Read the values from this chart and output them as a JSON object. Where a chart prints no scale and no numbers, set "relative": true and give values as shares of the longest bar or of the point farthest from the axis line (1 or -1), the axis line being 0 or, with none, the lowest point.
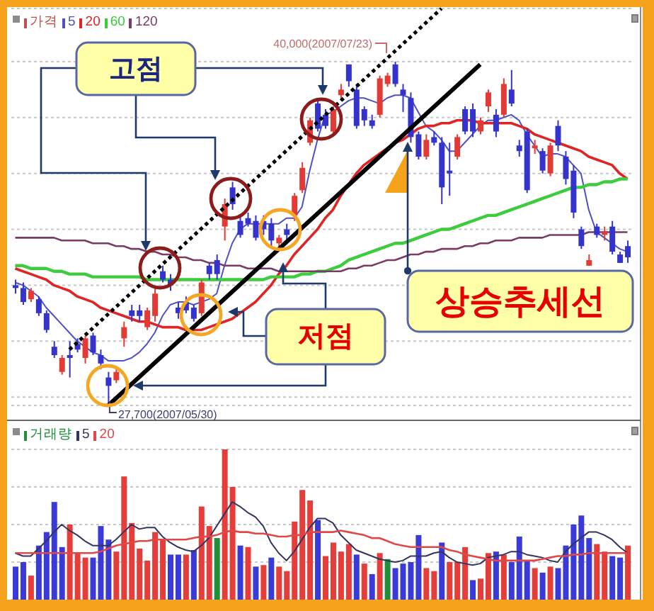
{
  "chart_data": [
    {
      "type": "candlestick",
      "tick_labels": false,
      "grid": "y",
      "legend": "top left",
      "categories": [
        null,
        null,
        null,
        null,
        null,
        null,
        null,
        null,
        null,
        null,
        null,
        null,
        null,
        null,
        null,
        null,
        null,
        null,
        null,
        null,
        null,
        null,
        null,
        null,
        null,
        null,
        null,
        null,
        null,
        null,
        null,
        null,
        null,
        null,
        null,
        null,
        null,
        null,
        null,
        null,
        null,
        null,
        null,
        null,
        null,
        null,
        null,
        null,
        null,
        null,
        null,
        null,
        null,
        null,
        null,
        null,
        null,
        null,
        null,
        null,
        null,
        null,
        null,
        null,
        null,
        null,
        null,
        null,
        null,
        null,
        null,
        null,
        null,
        null,
        null,
        null,
        null,
        null,
        null,
        null
      ],
      "yticks": [
        {
          "value": 28000,
          "label": null
        },
        {
          "value": 30000,
          "label": null
        },
        {
          "value": 32000,
          "label": null
        },
        {
          "value": 34000,
          "label": null
        },
        {
          "value": 36000,
          "label": null
        },
        {
          "value": 38000,
          "label": null
        },
        {
          "value": 40000,
          "label": null
        }
      ],
      "series": [
        {
          "name": "가격",
          "color": "#c0504d",
          "colors": [
            "#3434cc",
            "#3434cc",
            "#e23b36",
            "#3434cc",
            "#3434cc",
            "#3434cc",
            "#e23b36",
            "#3434cc",
            "#3434cc",
            "#e23b36",
            "#3434cc",
            "#3434cc",
            "#3434cc",
            "#e23b36",
            "#e23b36",
            "#3434cc",
            "#3434cc",
            "#e23b36",
            "#e23b36",
            "#3434cc",
            "#3434cc",
            "#3434cc",
            "#3434cc",
            "#3434cc",
            "#e23b36",
            "#3434cc",
            "#3434cc",
            "#e23b36",
            "#3434cc",
            "#3434cc",
            "#3434cc",
            "#3434cc",
            "#3434cc",
            "#3434cc",
            "#e23b36",
            "#3434cc",
            "#e23b36",
            "#e23b36",
            "#e23b36",
            "#3434cc",
            "#3434cc",
            "#e23b36",
            "#e23b36",
            "#3434cc",
            "#3434cc",
            "#3434cc",
            "#3434cc",
            "#e23b36",
            "#e23b36",
            "#3434cc",
            "#3434cc",
            "#3434cc",
            "#3434cc",
            "#e23b36",
            "#3434cc",
            "#3434cc",
            "#3434cc",
            "#e23b36",
            "#3434cc",
            "#3434cc",
            "#e23b36",
            "#e23b36",
            "#3434cc",
            "#e23b36",
            "#3434cc",
            "#3434cc",
            "#3434cc",
            "#e23b36",
            "#3434cc",
            "#e23b36",
            "#3434cc",
            "#3434cc",
            "#3434cc",
            "#3434cc",
            "#e23b36",
            "#3434cc",
            "#e23b36",
            "#3434cc",
            "#3434cc",
            "#3434cc"
          ],
          "ohlc": [
            [
              32000,
              32200,
              31700,
              31900
            ],
            [
              31900,
              32100,
              31300,
              31400
            ],
            [
              31500,
              31900,
              31400,
              31800
            ],
            [
              31500,
              31600,
              30900,
              31000
            ],
            [
              31000,
              31100,
              30300,
              30400
            ],
            [
              29800,
              30000,
              29400,
              29500
            ],
            [
              28900,
              29500,
              28800,
              29400
            ],
            [
              29500,
              30000,
              28700,
              29400
            ],
            [
              29900,
              30100,
              29600,
              29700
            ],
            [
              29400,
              30200,
              29200,
              30100
            ],
            [
              30200,
              30300,
              29500,
              29600
            ],
            [
              29500,
              29700,
              29000,
              29200
            ],
            [
              28700,
              28900,
              27700,
              28400
            ],
            [
              28600,
              29100,
              28500,
              28900
            ],
            [
              30100,
              30700,
              29800,
              30500
            ],
            [
              31100,
              31300,
              30700,
              30900
            ],
            [
              31100,
              31300,
              30700,
              30900
            ],
            [
              30500,
              31200,
              30400,
              31100
            ],
            [
              30900,
              31900,
              30700,
              31700
            ],
            [
              32500,
              32700,
              32100,
              32200
            ],
            [
              32200,
              32400,
              31800,
              32000
            ],
            [
              31200,
              31400,
              30800,
              31000
            ],
            [
              31400,
              31600,
              31000,
              31100
            ],
            [
              31200,
              31300,
              30700,
              30800
            ],
            [
              31000,
              32200,
              30900,
              32100
            ],
            [
              32700,
              32800,
              32200,
              32400
            ],
            [
              32900,
              33100,
              32200,
              32400
            ],
            [
              34100,
              35100,
              33600,
              34900
            ],
            [
              35500,
              35700,
              34700,
              34900
            ],
            [
              34300,
              34500,
              33700,
              33800
            ],
            [
              34400,
              34600,
              34100,
              34200
            ],
            [
              34300,
              34500,
              33600,
              33700
            ],
            [
              34300,
              34500,
              33800,
              34000
            ],
            [
              34200,
              34400,
              33400,
              33600
            ],
            [
              33500,
              33800,
              33300,
              33700
            ],
            [
              34000,
              34200,
              33600,
              33800
            ],
            [
              34500,
              35300,
              34300,
              35200
            ],
            [
              35400,
              36400,
              35300,
              36200
            ],
            [
              37100,
              38000,
              37000,
              37900
            ],
            [
              38500,
              38600,
              37500,
              37600
            ],
            [
              38100,
              38300,
              37600,
              37700
            ],
            [
              37500,
              38400,
              37400,
              38300
            ],
            [
              38800,
              39200,
              38600,
              39000
            ],
            [
              39900,
              39900,
              39100,
              39300
            ],
            [
              39000,
              39200,
              37600,
              37700
            ],
            [
              38300,
              38400,
              37700,
              37900
            ],
            [
              37900,
              38100,
              37600,
              37700
            ],
            [
              38100,
              39500,
              38000,
              39400
            ],
            [
              39200,
              39600,
              39100,
              39500
            ],
            [
              39900,
              40000,
              39100,
              39200
            ],
            [
              39000,
              39200,
              38200,
              38800
            ],
            [
              38700,
              38900,
              37100,
              37300
            ],
            [
              37400,
              37500,
              36500,
              36600
            ],
            [
              36600,
              37400,
              36500,
              37200
            ],
            [
              37300,
              37500,
              37000,
              37100
            ],
            [
              37100,
              37300,
              34900,
              35500
            ],
            [
              36100,
              37100,
              35200,
              36000
            ],
            [
              36600,
              37400,
              36500,
              37300
            ],
            [
              38300,
              38400,
              37400,
              37500
            ],
            [
              38300,
              38500,
              37300,
              37500
            ],
            [
              37500,
              38000,
              37400,
              37900
            ],
            [
              38400,
              39000,
              38200,
              38900
            ],
            [
              38100,
              38300,
              37300,
              37500
            ],
            [
              38100,
              39400,
              38000,
              39200
            ],
            [
              39000,
              39700,
              38400,
              38500
            ],
            [
              37000,
              37200,
              36600,
              36800
            ],
            [
              37500,
              37600,
              35300,
              35400
            ],
            [
              36900,
              37200,
              36700,
              37000
            ],
            [
              36800,
              36900,
              36000,
              36100
            ],
            [
              36000,
              37100,
              35900,
              37000
            ],
            [
              37700,
              37900,
              36800,
              37000
            ],
            [
              36600,
              36800,
              35600,
              35800
            ],
            [
              36100,
              36300,
              34400,
              34600
            ],
            [
              34000,
              34100,
              33300,
              33400
            ],
            [
              32700,
              33100,
              32700,
              32900
            ],
            [
              34100,
              34200,
              33700,
              33800
            ],
            [
              33800,
              34100,
              33600,
              33900
            ],
            [
              34100,
              34300,
              33100,
              33200
            ],
            [
              33100,
              33200,
              32800,
              32800
            ],
            [
              33400,
              33600,
              32800,
              33000
            ]
          ]
        },
        {
          "name": "5",
          "type": "line",
          "color": "#5050c8",
          "values": [
            32100,
            32000,
            31800,
            31600,
            31200,
            30900,
            30600,
            30300,
            30000,
            29800,
            29600,
            29500,
            29300,
            29300,
            29300,
            29400,
            29600,
            29900,
            30300,
            30900,
            31300,
            31400,
            31400,
            31300,
            31400,
            31500,
            31700,
            32700,
            33500,
            34000,
            34200,
            34200,
            34200,
            34200,
            34200,
            34400,
            34400,
            34800,
            36100,
            37200,
            38100,
            38200,
            38400,
            38600,
            38700,
            38700,
            38600,
            38500,
            38700,
            38800,
            38800,
            38700,
            38200,
            37700,
            37500,
            37200,
            36800,
            36800,
            37100,
            37400,
            37700,
            37900,
            37900,
            38000,
            38100,
            37900,
            37400,
            37000,
            36600,
            36700,
            36700,
            36600,
            36300,
            36000,
            34700,
            33900,
            33700,
            33500,
            33300,
            33200
          ]
        },
        {
          "name": "20",
          "type": "line",
          "color": "#e02424",
          "values": [
            32600,
            32500,
            32400,
            32300,
            32200,
            32000,
            31900,
            31800,
            31600,
            31500,
            31400,
            31200,
            31100,
            31000,
            30900,
            30800,
            30700,
            30700,
            30600,
            30500,
            30500,
            30500,
            30400,
            30400,
            30400,
            30500,
            30600,
            30700,
            30800,
            31000,
            31200,
            31400,
            31700,
            32000,
            32400,
            32700,
            33100,
            33400,
            33700,
            34000,
            34400,
            34700,
            35200,
            35600,
            36000,
            36300,
            36500,
            36700,
            36900,
            37100,
            37200,
            37400,
            37600,
            37700,
            37700,
            37800,
            37800,
            37900,
            37900,
            37900,
            37800,
            37800,
            37800,
            37800,
            37800,
            37700,
            37600,
            37400,
            37300,
            37200,
            37100,
            37000,
            36900,
            36800,
            36600,
            36500,
            36400,
            36300,
            36000,
            35800
          ]
        },
        {
          "name": "60",
          "type": "line",
          "color": "#3ccc3c",
          "values": [
            32700,
            32700,
            32600,
            32600,
            32600,
            32500,
            32500,
            32400,
            32400,
            32400,
            32300,
            32300,
            32300,
            32300,
            32300,
            32300,
            32300,
            32200,
            32200,
            32200,
            32200,
            32200,
            32200,
            32200,
            32200,
            32200,
            32200,
            32200,
            32200,
            32200,
            32200,
            32200,
            32200,
            32300,
            32300,
            32300,
            32300,
            32400,
            32400,
            32500,
            32500,
            32600,
            32700,
            32900,
            33000,
            33100,
            33200,
            33300,
            33400,
            33500,
            33500,
            33600,
            33700,
            33800,
            33900,
            34000,
            34000,
            34100,
            34200,
            34300,
            34400,
            34500,
            34500,
            34600,
            34700,
            34800,
            34900,
            35000,
            35100,
            35200,
            35300,
            35400,
            35500,
            35500,
            35600,
            35600,
            35700,
            35700,
            35800,
            35800
          ]
        },
        {
          "name": "120",
          "type": "line",
          "color": "#7a3c66",
          "values": [
            33700,
            33700,
            33700,
            33700,
            33700,
            33700,
            33600,
            33600,
            33600,
            33600,
            33500,
            33500,
            33500,
            33400,
            33400,
            33300,
            33300,
            33200,
            33200,
            33100,
            33100,
            33000,
            33000,
            32900,
            32900,
            32800,
            32800,
            32700,
            32700,
            32700,
            32600,
            32600,
            32600,
            32600,
            32500,
            32500,
            32500,
            32500,
            32500,
            32500,
            32500,
            32500,
            32500,
            32600,
            32600,
            32700,
            32700,
            32800,
            32900,
            32900,
            33000,
            33100,
            33100,
            33200,
            33200,
            33300,
            33300,
            33300,
            33400,
            33400,
            33500,
            33500,
            33600,
            33600,
            33600,
            33700,
            33700,
            33700,
            33700,
            33800,
            33800,
            33800,
            33800,
            33800,
            33900,
            33900,
            33900,
            33900,
            33900,
            33900
          ]
        },
        {
          "type": "line",
          "color": "#000000",
          "line_style": "dotted",
          "values": [
            null,
            null,
            null,
            null,
            null,
            null,
            null,
            29700,
            null,
            null,
            null,
            null,
            null,
            null,
            null,
            null,
            null,
            null,
            null,
            null,
            null,
            null,
            null,
            null,
            null,
            null,
            null,
            null,
            null,
            null,
            null,
            null,
            null,
            null,
            null,
            null,
            null,
            null,
            null,
            null,
            null,
            null,
            null,
            null,
            null,
            null,
            null,
            null,
            null,
            null,
            null,
            null,
            null,
            null,
            null,
            41900,
            null,
            null,
            null,
            null,
            null,
            null,
            null,
            null,
            null,
            null,
            null,
            null,
            null,
            null,
            null,
            null,
            null,
            null,
            null,
            null,
            null,
            null,
            null,
            null
          ]
        },
        {
          "type": "line",
          "color": "#000000",
          "line_style": "solid",
          "values": [
            null,
            null,
            null,
            null,
            null,
            null,
            null,
            null,
            null,
            null,
            null,
            null,
            27700,
            null,
            null,
            null,
            null,
            null,
            null,
            null,
            null,
            null,
            null,
            null,
            null,
            null,
            null,
            null,
            null,
            null,
            null,
            null,
            null,
            null,
            null,
            null,
            null,
            null,
            null,
            null,
            null,
            null,
            null,
            null,
            null,
            null,
            null,
            null,
            null,
            null,
            null,
            null,
            null,
            null,
            null,
            null,
            null,
            null,
            null,
            null,
            39900,
            null,
            null,
            null,
            null,
            null,
            null,
            null,
            null,
            null,
            null,
            null,
            null,
            null,
            null,
            null,
            null,
            null,
            null,
            null
          ]
        }
      ],
      "annotations": [
        "40,000(2007/07/23)",
        "27,700(2007/05/30)",
        "고점",
        "저점",
        "상승추세선"
      ]
    },
    {
      "type": "bar",
      "relative": true,
      "tick_labels": false,
      "grid": "y",
      "legend": "top left",
      "categories": [
        null,
        null,
        null,
        null,
        null,
        null,
        null,
        null,
        null,
        null,
        null,
        null,
        null,
        null,
        null,
        null,
        null,
        null,
        null,
        null,
        null,
        null,
        null,
        null,
        null,
        null,
        null,
        null,
        null,
        null,
        null,
        null,
        null,
        null,
        null,
        null,
        null,
        null,
        null,
        null,
        null,
        null,
        null,
        null,
        null,
        null,
        null,
        null,
        null,
        null,
        null,
        null,
        null,
        null,
        null,
        null,
        null,
        null,
        null,
        null,
        null,
        null,
        null,
        null,
        null,
        null,
        null,
        null,
        null,
        null,
        null,
        null,
        null,
        null,
        null,
        null,
        null,
        null,
        null,
        null
      ],
      "series": [
        {
          "name": "거래량",
          "color": "#1f8f3a",
          "colors": [
            "#3a3ad8",
            "#3a3ad8",
            "#e53e3a",
            "#3a3ad8",
            "#3a3ad8",
            "#3a3ad8",
            "#3a3ad8",
            "#e53e3a",
            "#e53e3a",
            "#e53e3a",
            "#3a3ad8",
            "#3a3ad8",
            "#3a3ad8",
            "#e53e3a",
            "#e53e3a",
            "#e53e3a",
            "#e53e3a",
            "#e53e3a",
            "#e53e3a",
            "#e53e3a",
            "#3a3ad8",
            "#3a3ad8",
            "#e53e3a",
            "#3a3ad8",
            "#e53e3a",
            "#e53e3a",
            "#1f8f3a",
            "#e53e3a",
            "#e53e3a",
            "#3a3ad8",
            "#e53e3a",
            "#3a3ad8",
            "#e53e3a",
            "#3a3ad8",
            "#e53e3a",
            "#e53e3a",
            "#e53e3a",
            "#e53e3a",
            "#e53e3a",
            "#3a3ad8",
            "#e53e3a",
            "#e53e3a",
            "#e53e3a",
            "#e53e3a",
            "#3a3ad8",
            "#e53e3a",
            "#3a3ad8",
            "#e53e3a",
            "#1f8f3a",
            "#3a3ad8",
            "#3a3ad8",
            "#3a3ad8",
            "#3a3ad8",
            "#e53e3a",
            "#e53e3a",
            "#3a3ad8",
            "#e53e3a",
            "#e53e3a",
            "#e53e3a",
            "#3a3ad8",
            "#e53e3a",
            "#e53e3a",
            "#3a3ad8",
            "#e53e3a",
            "#3a3ad8",
            "#3a3ad8",
            "#3a3ad8",
            "#e53e3a",
            "#3a3ad8",
            "#e53e3a",
            "#3a3ad8",
            "#3a3ad8",
            "#3a3ad8",
            "#3a3ad8",
            "#3a3ad8",
            "#e53e3a",
            "#e53e3a",
            "#3a3ad8",
            "#3a3ad8",
            "#e53e3a"
          ],
          "values": [
            0.22,
            0.25,
            0.16,
            0.36,
            0.45,
            0.65,
            0.35,
            0.5,
            0.31,
            0.28,
            0.28,
            0.49,
            0.4,
            0.32,
            0.82,
            0.51,
            0.34,
            0.26,
            0.45,
            0.4,
            0.3,
            0.3,
            0.3,
            0.33,
            0.62,
            0.49,
            0.41,
            1,
            0.75,
            0.36,
            0.35,
            0.22,
            0.23,
            0.28,
            0.22,
            0.19,
            0.52,
            0.73,
            0.66,
            0.53,
            0.29,
            0.38,
            0.32,
            0.37,
            0.3,
            0.24,
            0.17,
            0.31,
            0.27,
            0.21,
            0.24,
            0.25,
            0.43,
            0.21,
            0.19,
            0.38,
            0.25,
            0.25,
            0.35,
            0.13,
            0.14,
            0.31,
            0.32,
            0.3,
            0.25,
            0.42,
            0.26,
            0.21,
            0.18,
            0.22,
            0.21,
            0.36,
            0.5,
            0.56,
            0.41,
            0.37,
            0.32,
            0.29,
            0.28,
            0.36
          ]
        },
        {
          "name": "5",
          "type": "line",
          "color": "#34345e",
          "values": [
            0.31,
            0.29,
            0.29,
            0.34,
            0.39,
            0.45,
            0.5,
            0.46,
            0.43,
            0.39,
            0.36,
            0.36,
            0.36,
            0.4,
            0.45,
            0.5,
            0.47,
            0.48,
            0.48,
            0.42,
            0.38,
            0.35,
            0.33,
            0.32,
            0.36,
            0.41,
            0.49,
            0.57,
            0.65,
            0.62,
            0.58,
            0.55,
            0.49,
            0.38,
            0.31,
            0.26,
            0.32,
            0.4,
            0.48,
            0.54,
            0.54,
            0.51,
            0.43,
            0.38,
            0.33,
            0.31,
            0.29,
            0.27,
            0.26,
            0.25,
            0.26,
            0.29,
            0.29,
            0.29,
            0.31,
            0.32,
            0.28,
            0.25,
            0.24,
            0.23,
            0.24,
            0.28,
            0.29,
            0.3,
            0.32,
            0.32,
            0.3,
            0.29,
            0.28,
            0.26,
            0.25,
            0.32,
            0.37,
            0.41,
            0.45,
            0.45,
            0.43,
            0.4,
            0.35,
            0.31
          ]
        },
        {
          "name": "20",
          "type": "line",
          "color": "#e04848",
          "values": [
            0.31,
            0.31,
            0.31,
            0.31,
            0.31,
            0.31,
            0.31,
            0.31,
            0.31,
            0.31,
            0.31,
            0.32,
            0.34,
            0.36,
            0.37,
            0.38,
            0.39,
            0.39,
            0.4,
            0.4,
            0.4,
            0.4,
            0.4,
            0.41,
            0.42,
            0.42,
            0.43,
            0.45,
            0.46,
            0.45,
            0.45,
            0.44,
            0.44,
            0.43,
            0.42,
            0.42,
            0.43,
            0.43,
            0.45,
            0.45,
            0.45,
            0.45,
            0.46,
            0.45,
            0.44,
            0.43,
            0.41,
            0.41,
            0.39,
            0.37,
            0.36,
            0.35,
            0.35,
            0.35,
            0.35,
            0.35,
            0.33,
            0.32,
            0.3,
            0.29,
            0.28,
            0.27,
            0.26,
            0.26,
            0.26,
            0.26,
            0.26,
            0.26,
            0.27,
            0.28,
            0.29,
            0.29,
            0.3,
            0.3,
            0.31,
            0.31,
            0.31,
            0.31,
            0.31,
            0.31
          ]
        }
      ]
    }
  ]
}
